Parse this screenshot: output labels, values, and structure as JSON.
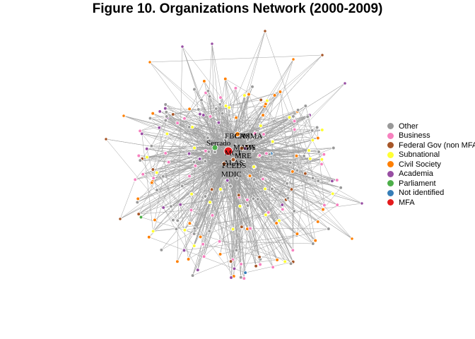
{
  "title": "Figure 10. Organizations Network (2000-2009)",
  "legend": [
    {
      "label": "Other",
      "color": "#999999"
    },
    {
      "label": "Business",
      "color": "#f781bf"
    },
    {
      "label": "Federal Gov (non MFA",
      "color": "#a65628"
    },
    {
      "label": "Subnational",
      "color": "#ffff33"
    },
    {
      "label": "Civil Society",
      "color": "#ff7f00"
    },
    {
      "label": "Academia",
      "color": "#984ea3"
    },
    {
      "label": "Parliament",
      "color": "#4daf4a"
    },
    {
      "label": "Not identified",
      "color": "#377eb8"
    },
    {
      "label": "MFA",
      "color": "#e41a1c"
    }
  ],
  "node_labels": [
    "FBCN",
    "CAS",
    "MMA",
    "Serrado",
    "MAPA",
    "MS",
    "MCT",
    "MRE",
    "ALAS",
    "FCEDS",
    "MDIC"
  ],
  "edge_color": "#a0a0a0"
}
